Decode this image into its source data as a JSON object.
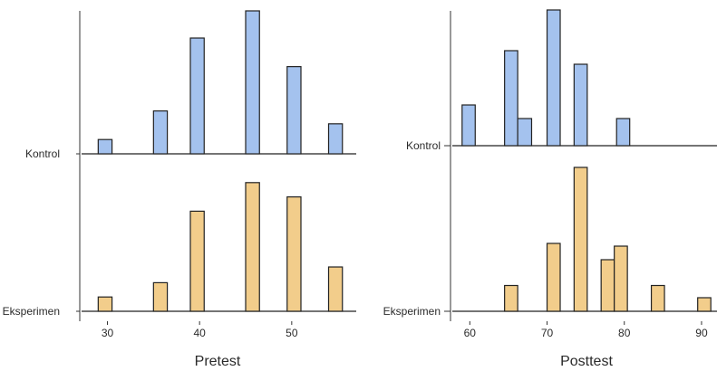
{
  "chart_data": [
    {
      "type": "ridgeline-histogram",
      "title": "",
      "xlabel": "Pretest",
      "ylabel": "",
      "xlim": [
        27,
        57
      ],
      "xticks": [
        30,
        40,
        50
      ],
      "groups": [
        "Kontrol",
        "Eksperimen"
      ],
      "grid": false,
      "series": [
        {
          "name": "Kontrol",
          "color": "#a4c2ee",
          "bins": [
            {
              "x0": 29,
              "x1": 30.5,
              "height": 0.1
            },
            {
              "x0": 35,
              "x1": 36.5,
              "height": 0.3
            },
            {
              "x0": 39,
              "x1": 40.5,
              "height": 0.81
            },
            {
              "x0": 45,
              "x1": 46.5,
              "height": 1.0
            },
            {
              "x0": 49.5,
              "x1": 51,
              "height": 0.61
            },
            {
              "x0": 54,
              "x1": 55.5,
              "height": 0.21
            }
          ]
        },
        {
          "name": "Eksperimen",
          "color": "#f2cd8b",
          "bins": [
            {
              "x0": 29,
              "x1": 30.5,
              "height": 0.1
            },
            {
              "x0": 35,
              "x1": 36.5,
              "height": 0.2
            },
            {
              "x0": 39,
              "x1": 40.5,
              "height": 0.7
            },
            {
              "x0": 45,
              "x1": 46.5,
              "height": 0.9
            },
            {
              "x0": 49.5,
              "x1": 51,
              "height": 0.8
            },
            {
              "x0": 54,
              "x1": 55.5,
              "height": 0.31
            }
          ]
        }
      ]
    },
    {
      "type": "ridgeline-histogram",
      "title": "",
      "xlabel": "Posttest",
      "ylabel": "",
      "xlim": [
        57.5,
        92
      ],
      "xticks": [
        60,
        70,
        80,
        90
      ],
      "groups": [
        "Kontrol",
        "Eksperimen"
      ],
      "grid": false,
      "series": [
        {
          "name": "Kontrol",
          "color": "#a4c2ee",
          "bins": [
            {
              "x0": 59,
              "x1": 60.7,
              "height": 0.3
            },
            {
              "x0": 64.5,
              "x1": 66.2,
              "height": 0.7
            },
            {
              "x0": 66.2,
              "x1": 68,
              "height": 0.2
            },
            {
              "x0": 70,
              "x1": 71.7,
              "height": 1.0
            },
            {
              "x0": 73.5,
              "x1": 75.2,
              "height": 0.6
            },
            {
              "x0": 79,
              "x1": 80.7,
              "height": 0.2
            }
          ]
        },
        {
          "name": "Eksperimen",
          "color": "#f2cd8b",
          "bins": [
            {
              "x0": 64.5,
              "x1": 66.2,
              "height": 0.19
            },
            {
              "x0": 70,
              "x1": 71.7,
              "height": 0.5
            },
            {
              "x0": 73.5,
              "x1": 75.2,
              "height": 1.06
            },
            {
              "x0": 77,
              "x1": 78.7,
              "height": 0.38
            },
            {
              "x0": 78.7,
              "x1": 80.4,
              "height": 0.48
            },
            {
              "x0": 83.5,
              "x1": 85.2,
              "height": 0.19
            },
            {
              "x0": 89.5,
              "x1": 91.2,
              "height": 0.1
            }
          ]
        }
      ]
    }
  ]
}
